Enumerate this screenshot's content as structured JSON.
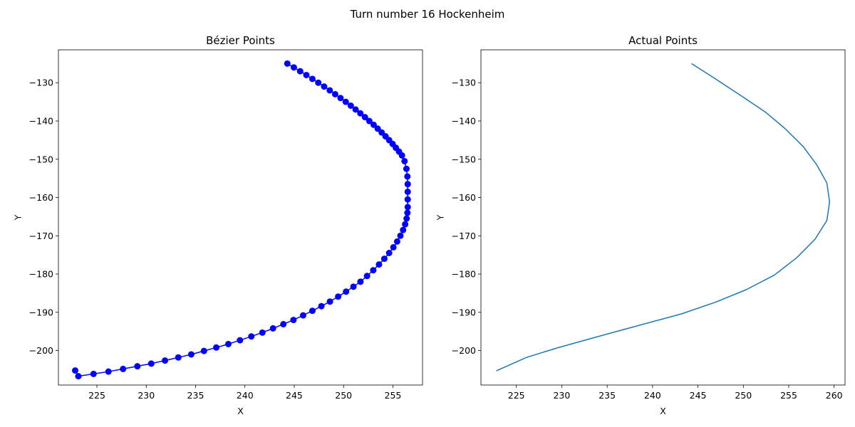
{
  "figure": {
    "suptitle": "Turn number 16 Hockenheim"
  },
  "chart_data": [
    {
      "type": "scatter",
      "title": "Bézier Points",
      "xlabel": "X",
      "ylabel": "Y",
      "xlim": [
        221.1,
        258.0
      ],
      "ylim": [
        -209.0,
        -121.4
      ],
      "xticks": [
        225,
        230,
        235,
        240,
        245,
        250,
        255
      ],
      "yticks": [
        -200,
        -190,
        -180,
        -170,
        -160,
        -150,
        -140,
        -130
      ],
      "marker": "circle",
      "line": true,
      "color": "#0000ff",
      "x": [
        244.3,
        244.96,
        245.6,
        246.23,
        246.84,
        247.44,
        248.03,
        248.6,
        249.15,
        249.69,
        250.22,
        250.73,
        251.22,
        251.7,
        252.17,
        252.61,
        253.05,
        253.46,
        253.86,
        254.25,
        254.62,
        254.97,
        255.3,
        255.62,
        255.92,
        256.18,
        256.37,
        256.47,
        256.5,
        256.5,
        256.5,
        256.5,
        256.47,
        256.39,
        256.24,
        256.03,
        255.76,
        255.43,
        255.05,
        254.62,
        254.13,
        253.59,
        253.01,
        252.38,
        251.71,
        251.0,
        250.25,
        249.45,
        248.62,
        247.75,
        246.84,
        245.9,
        244.92,
        243.9,
        242.85,
        241.77,
        240.65,
        239.5,
        238.32,
        237.1,
        235.85,
        234.56,
        233.25,
        231.9,
        230.51,
        229.1,
        227.65,
        226.17,
        224.66,
        223.12,
        222.8
      ],
      "y": [
        -125.0,
        -126.0,
        -127.0,
        -128.0,
        -129.0,
        -130.0,
        -131.0,
        -132.0,
        -133.0,
        -134.0,
        -135.0,
        -136.0,
        -137.0,
        -138.0,
        -139.0,
        -140.0,
        -141.0,
        -142.0,
        -143.0,
        -144.0,
        -145.0,
        -146.0,
        -147.0,
        -148.0,
        -149.0,
        -150.5,
        -152.5,
        -154.5,
        -156.5,
        -158.5,
        -160.5,
        -162.5,
        -164.0,
        -165.5,
        -167.0,
        -168.5,
        -170.0,
        -171.5,
        -173.0,
        -174.5,
        -176.0,
        -177.5,
        -179.0,
        -180.5,
        -182.0,
        -183.3,
        -184.6,
        -185.9,
        -187.2,
        -188.4,
        -189.6,
        -190.8,
        -192.0,
        -193.1,
        -194.2,
        -195.3,
        -196.3,
        -197.3,
        -198.3,
        -199.2,
        -200.1,
        -201.0,
        -201.8,
        -202.6,
        -203.4,
        -204.1,
        -204.8,
        -205.5,
        -206.1,
        -206.7,
        -205.2
      ]
    },
    {
      "type": "line",
      "title": "Actual Points",
      "xlabel": "X",
      "ylabel": "Y",
      "xlim": [
        221.1,
        261.2
      ],
      "ylim": [
        -209.0,
        -121.4
      ],
      "xticks": [
        225,
        230,
        235,
        240,
        245,
        250,
        255,
        260
      ],
      "yticks": [
        -200,
        -190,
        -180,
        -170,
        -160,
        -150,
        -140,
        -130
      ],
      "color": "#1f77b4",
      "x": [
        244.3,
        247.0,
        250.0,
        252.5,
        254.6,
        256.6,
        258.1,
        259.2,
        259.5,
        259.2,
        257.9,
        255.9,
        253.4,
        250.3,
        247.0,
        243.2,
        239.0,
        234.5,
        229.5,
        226.1,
        222.8
      ],
      "y": [
        -125.0,
        -129.1,
        -133.8,
        -137.8,
        -142.0,
        -146.7,
        -151.5,
        -156.2,
        -161.1,
        -166.0,
        -170.9,
        -175.7,
        -180.3,
        -184.1,
        -187.3,
        -190.4,
        -193.1,
        -196.0,
        -199.3,
        -201.8,
        -205.3
      ]
    }
  ]
}
